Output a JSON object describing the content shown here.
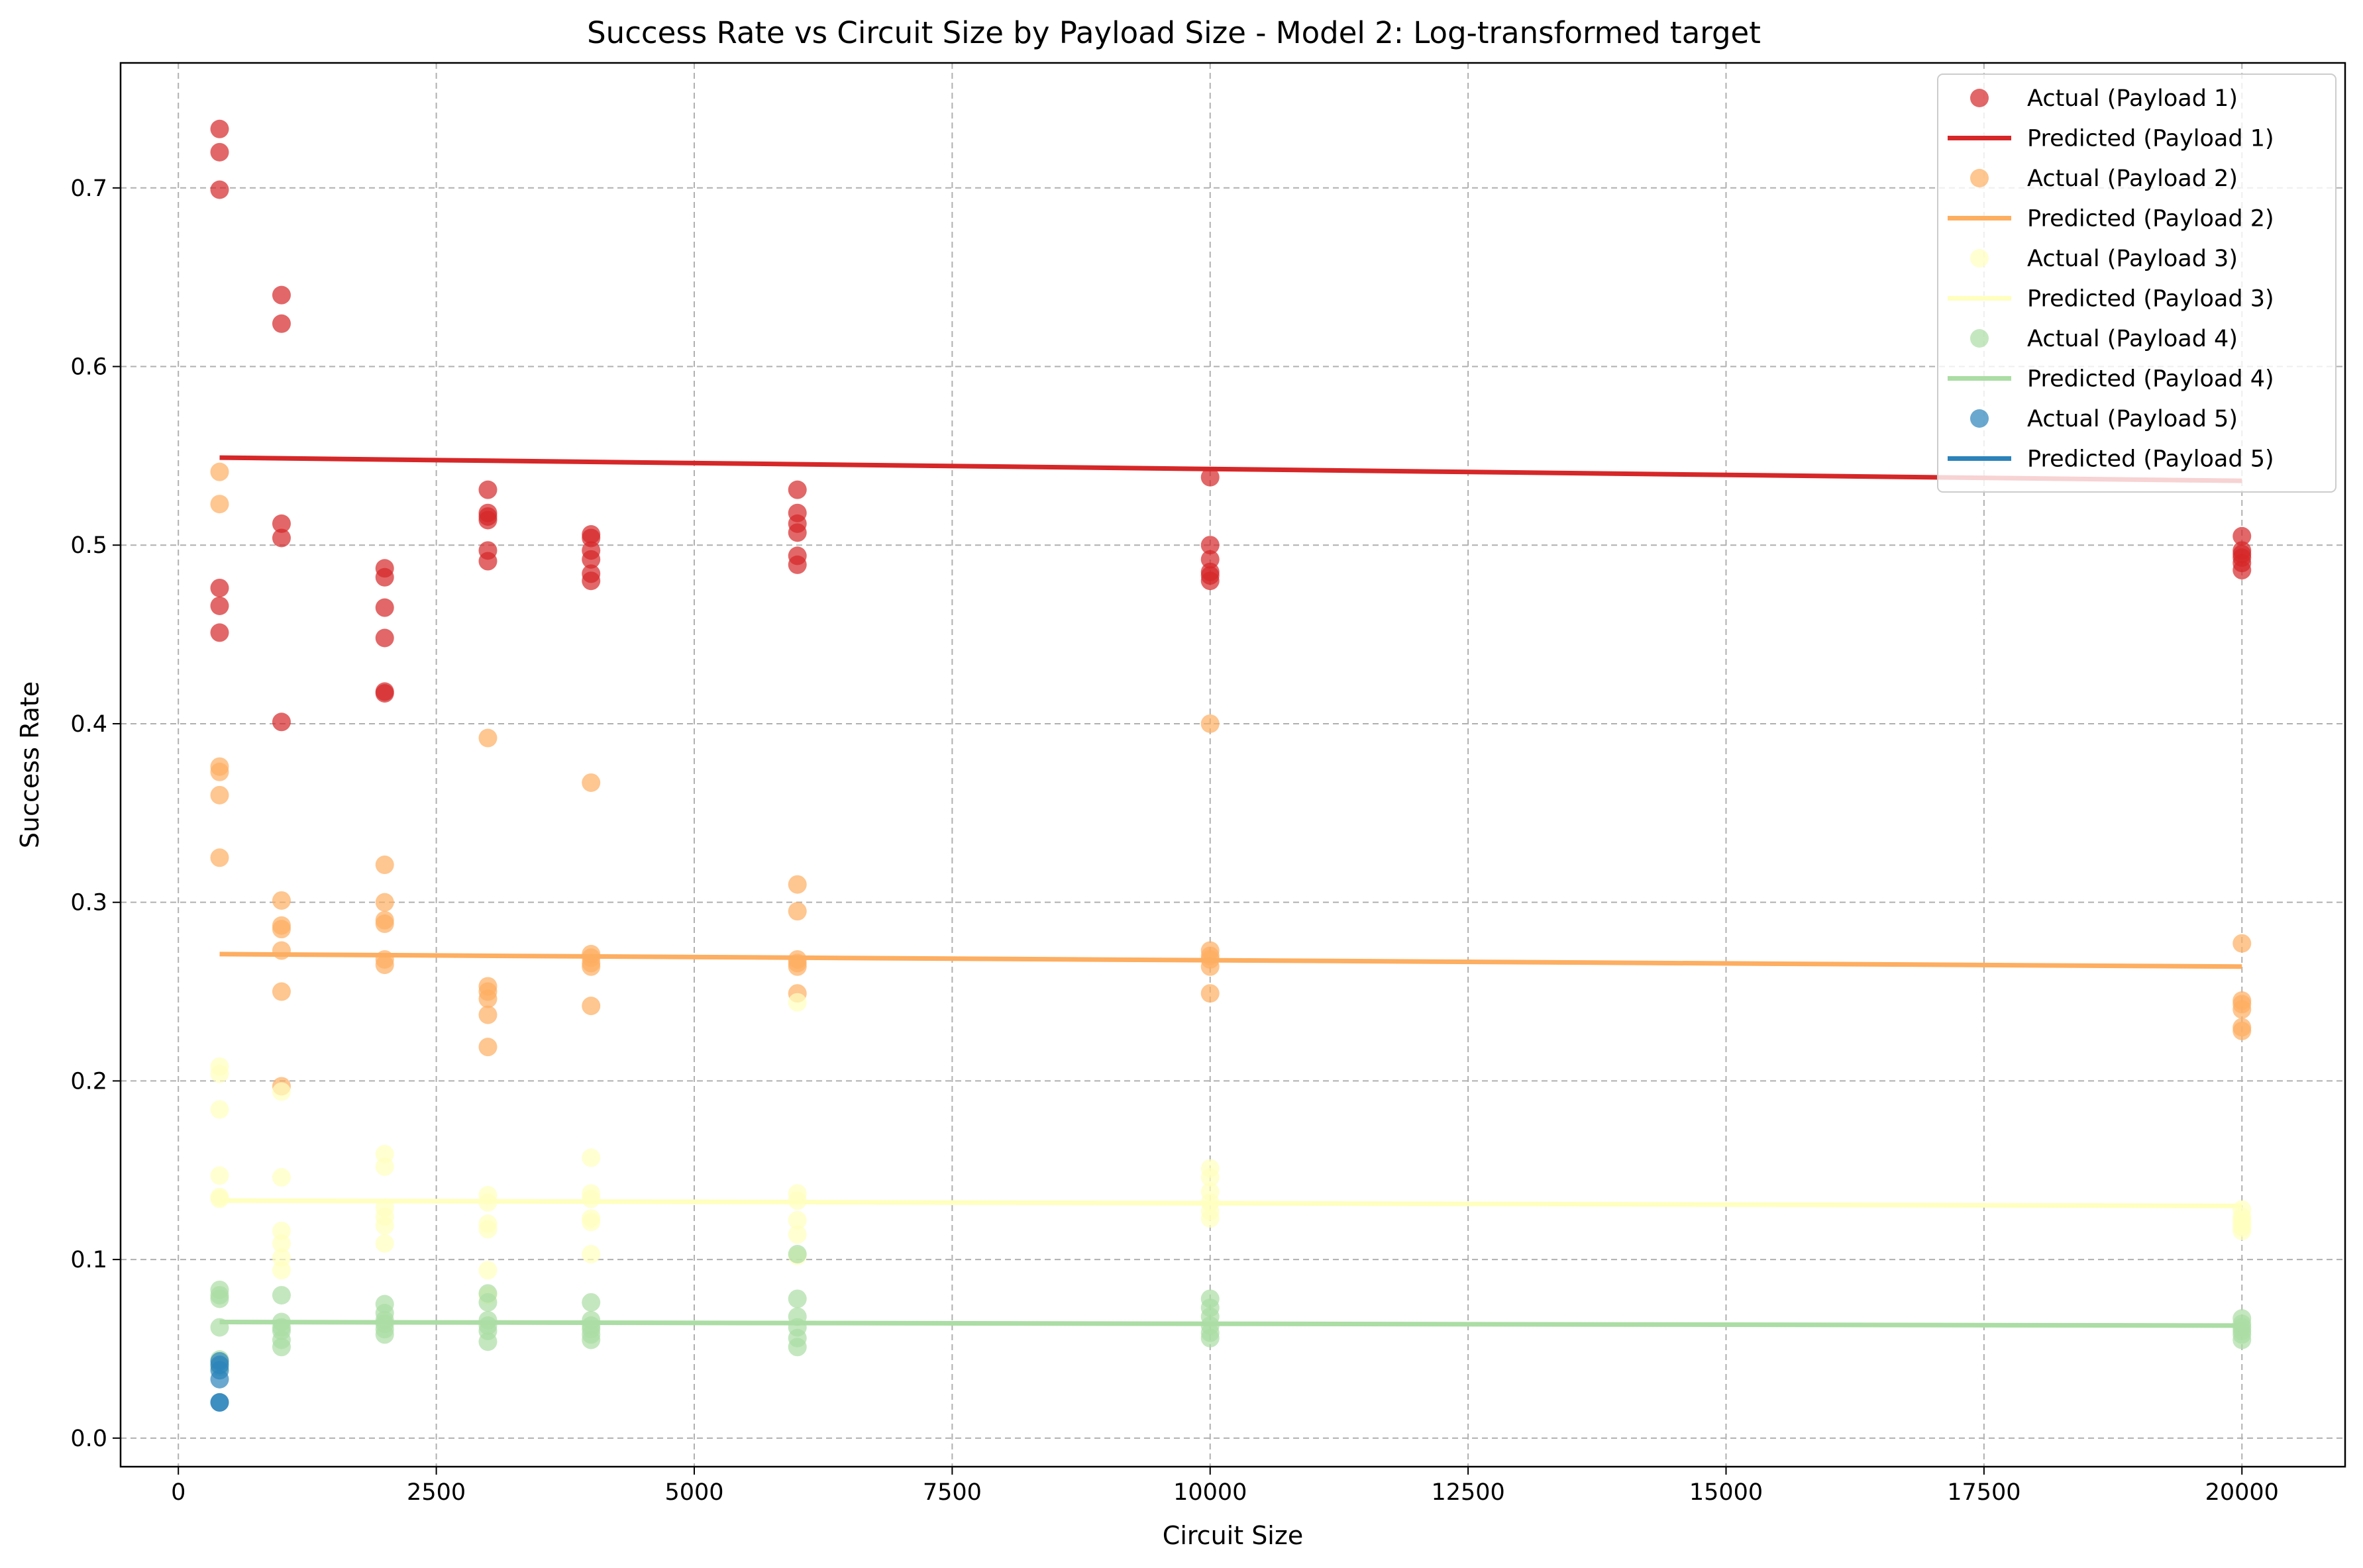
{
  "chart_data": {
    "type": "scatter",
    "title": "Success Rate vs Circuit Size by Payload Size - Model 2: Log-transformed target",
    "xlabel": "Circuit Size",
    "ylabel": "Success Rate",
    "xlim": [
      -560,
      21000
    ],
    "ylim": [
      -0.016,
      0.77
    ],
    "xticks": [
      0,
      2500,
      5000,
      7500,
      10000,
      12500,
      15000,
      17500,
      20000
    ],
    "xtick_labels": [
      "0",
      "2500",
      "5000",
      "7500",
      "10000",
      "12500",
      "15000",
      "17500",
      "20000"
    ],
    "yticks": [
      0.0,
      0.1,
      0.2,
      0.3,
      0.4,
      0.5,
      0.6,
      0.7
    ],
    "ytick_labels": [
      "0.0",
      "0.1",
      "0.2",
      "0.3",
      "0.4",
      "0.5",
      "0.6",
      "0.7"
    ],
    "grid": true,
    "legend_position": "top-right",
    "legend": [
      {
        "label": "Actual (Payload 1)",
        "kind": "marker",
        "color": "#d62728"
      },
      {
        "label": "Predicted (Payload 1)",
        "kind": "line",
        "color": "#d62728"
      },
      {
        "label": "Actual (Payload 2)",
        "kind": "marker",
        "color": "#fdae61"
      },
      {
        "label": "Predicted (Payload 2)",
        "kind": "line",
        "color": "#fdae61"
      },
      {
        "label": "Actual (Payload 3)",
        "kind": "marker",
        "color": "#ffffbf"
      },
      {
        "label": "Predicted (Payload 3)",
        "kind": "line",
        "color": "#ffffbf"
      },
      {
        "label": "Actual (Payload 4)",
        "kind": "marker",
        "color": "#abdda4"
      },
      {
        "label": "Predicted (Payload 4)",
        "kind": "line",
        "color": "#abdda4"
      },
      {
        "label": "Actual (Payload 5)",
        "kind": "marker",
        "color": "#2b83ba"
      },
      {
        "label": "Predicted (Payload 5)",
        "kind": "line",
        "color": "#2b83ba"
      }
    ],
    "series": [
      {
        "color": "#d62728",
        "actual": [
          [
            400,
            0.733
          ],
          [
            400,
            0.72
          ],
          [
            400,
            0.699
          ],
          [
            400,
            0.476
          ],
          [
            400,
            0.466
          ],
          [
            400,
            0.451
          ],
          [
            1000,
            0.64
          ],
          [
            1000,
            0.624
          ],
          [
            1000,
            0.512
          ],
          [
            1000,
            0.504
          ],
          [
            1000,
            0.401
          ],
          [
            2000,
            0.487
          ],
          [
            2000,
            0.482
          ],
          [
            2000,
            0.465
          ],
          [
            2000,
            0.448
          ],
          [
            2000,
            0.418
          ],
          [
            2000,
            0.417
          ],
          [
            3000,
            0.531
          ],
          [
            3000,
            0.518
          ],
          [
            3000,
            0.516
          ],
          [
            3000,
            0.514
          ],
          [
            3000,
            0.497
          ],
          [
            3000,
            0.491
          ],
          [
            4000,
            0.506
          ],
          [
            4000,
            0.504
          ],
          [
            4000,
            0.497
          ],
          [
            4000,
            0.492
          ],
          [
            4000,
            0.484
          ],
          [
            4000,
            0.48
          ],
          [
            6000,
            0.531
          ],
          [
            6000,
            0.518
          ],
          [
            6000,
            0.512
          ],
          [
            6000,
            0.507
          ],
          [
            6000,
            0.494
          ],
          [
            6000,
            0.489
          ],
          [
            10000,
            0.538
          ],
          [
            10000,
            0.5
          ],
          [
            10000,
            0.492
          ],
          [
            10000,
            0.485
          ],
          [
            10000,
            0.483
          ],
          [
            10000,
            0.48
          ],
          [
            20000,
            0.505
          ],
          [
            20000,
            0.497
          ],
          [
            20000,
            0.495
          ],
          [
            20000,
            0.493
          ],
          [
            20000,
            0.49
          ],
          [
            20000,
            0.486
          ]
        ],
        "predicted": [
          [
            400,
            0.549
          ],
          [
            20000,
            0.536
          ]
        ]
      },
      {
        "color": "#fdae61",
        "actual": [
          [
            400,
            0.541
          ],
          [
            400,
            0.523
          ],
          [
            400,
            0.376
          ],
          [
            400,
            0.373
          ],
          [
            400,
            0.36
          ],
          [
            400,
            0.325
          ],
          [
            1000,
            0.301
          ],
          [
            1000,
            0.287
          ],
          [
            1000,
            0.285
          ],
          [
            1000,
            0.273
          ],
          [
            1000,
            0.25
          ],
          [
            1000,
            0.197
          ],
          [
            2000,
            0.321
          ],
          [
            2000,
            0.3
          ],
          [
            2000,
            0.29
          ],
          [
            2000,
            0.288
          ],
          [
            2000,
            0.268
          ],
          [
            2000,
            0.265
          ],
          [
            3000,
            0.392
          ],
          [
            3000,
            0.253
          ],
          [
            3000,
            0.25
          ],
          [
            3000,
            0.246
          ],
          [
            3000,
            0.237
          ],
          [
            3000,
            0.219
          ],
          [
            4000,
            0.367
          ],
          [
            4000,
            0.271
          ],
          [
            4000,
            0.269
          ],
          [
            4000,
            0.266
          ],
          [
            4000,
            0.264
          ],
          [
            4000,
            0.242
          ],
          [
            6000,
            0.31
          ],
          [
            6000,
            0.295
          ],
          [
            6000,
            0.268
          ],
          [
            6000,
            0.266
          ],
          [
            6000,
            0.264
          ],
          [
            6000,
            0.249
          ],
          [
            10000,
            0.4
          ],
          [
            10000,
            0.273
          ],
          [
            10000,
            0.27
          ],
          [
            10000,
            0.268
          ],
          [
            10000,
            0.264
          ],
          [
            10000,
            0.249
          ],
          [
            20000,
            0.277
          ],
          [
            20000,
            0.245
          ],
          [
            20000,
            0.243
          ],
          [
            20000,
            0.24
          ],
          [
            20000,
            0.23
          ],
          [
            20000,
            0.228
          ]
        ],
        "predicted": [
          [
            400,
            0.271
          ],
          [
            20000,
            0.264
          ]
        ]
      },
      {
        "color": "#ffffbf",
        "actual": [
          [
            400,
            0.208
          ],
          [
            400,
            0.204
          ],
          [
            400,
            0.184
          ],
          [
            400,
            0.147
          ],
          [
            400,
            0.135
          ],
          [
            400,
            0.134
          ],
          [
            1000,
            0.194
          ],
          [
            1000,
            0.146
          ],
          [
            1000,
            0.116
          ],
          [
            1000,
            0.109
          ],
          [
            1000,
            0.101
          ],
          [
            1000,
            0.094
          ],
          [
            2000,
            0.159
          ],
          [
            2000,
            0.152
          ],
          [
            2000,
            0.129
          ],
          [
            2000,
            0.124
          ],
          [
            2000,
            0.119
          ],
          [
            2000,
            0.109
          ],
          [
            3000,
            0.136
          ],
          [
            3000,
            0.132
          ],
          [
            3000,
            0.12
          ],
          [
            3000,
            0.117
          ],
          [
            3000,
            0.094
          ],
          [
            3000,
            0.08
          ],
          [
            4000,
            0.157
          ],
          [
            4000,
            0.137
          ],
          [
            4000,
            0.134
          ],
          [
            4000,
            0.123
          ],
          [
            4000,
            0.121
          ],
          [
            4000,
            0.103
          ],
          [
            6000,
            0.244
          ],
          [
            6000,
            0.137
          ],
          [
            6000,
            0.133
          ],
          [
            6000,
            0.122
          ],
          [
            6000,
            0.114
          ],
          [
            6000,
            0.102
          ],
          [
            10000,
            0.151
          ],
          [
            10000,
            0.146
          ],
          [
            10000,
            0.138
          ],
          [
            10000,
            0.132
          ],
          [
            10000,
            0.127
          ],
          [
            10000,
            0.123
          ],
          [
            20000,
            0.128
          ],
          [
            20000,
            0.124
          ],
          [
            20000,
            0.122
          ],
          [
            20000,
            0.12
          ],
          [
            20000,
            0.118
          ],
          [
            20000,
            0.116
          ]
        ],
        "predicted": [
          [
            400,
            0.133
          ],
          [
            20000,
            0.13
          ]
        ]
      },
      {
        "color": "#abdda4",
        "actual": [
          [
            400,
            0.083
          ],
          [
            400,
            0.08
          ],
          [
            400,
            0.078
          ],
          [
            400,
            0.062
          ],
          [
            400,
            0.044
          ],
          [
            400,
            0.04
          ],
          [
            1000,
            0.08
          ],
          [
            1000,
            0.065
          ],
          [
            1000,
            0.062
          ],
          [
            1000,
            0.06
          ],
          [
            1000,
            0.055
          ],
          [
            1000,
            0.051
          ],
          [
            2000,
            0.075
          ],
          [
            2000,
            0.07
          ],
          [
            2000,
            0.066
          ],
          [
            2000,
            0.064
          ],
          [
            2000,
            0.061
          ],
          [
            2000,
            0.058
          ],
          [
            3000,
            0.081
          ],
          [
            3000,
            0.076
          ],
          [
            3000,
            0.066
          ],
          [
            3000,
            0.063
          ],
          [
            3000,
            0.06
          ],
          [
            3000,
            0.054
          ],
          [
            4000,
            0.076
          ],
          [
            4000,
            0.066
          ],
          [
            4000,
            0.063
          ],
          [
            4000,
            0.061
          ],
          [
            4000,
            0.058
          ],
          [
            4000,
            0.055
          ],
          [
            6000,
            0.103
          ],
          [
            6000,
            0.078
          ],
          [
            6000,
            0.068
          ],
          [
            6000,
            0.062
          ],
          [
            6000,
            0.056
          ],
          [
            6000,
            0.051
          ],
          [
            10000,
            0.078
          ],
          [
            10000,
            0.073
          ],
          [
            10000,
            0.068
          ],
          [
            10000,
            0.063
          ],
          [
            10000,
            0.059
          ],
          [
            10000,
            0.056
          ],
          [
            20000,
            0.067
          ],
          [
            20000,
            0.064
          ],
          [
            20000,
            0.062
          ],
          [
            20000,
            0.06
          ],
          [
            20000,
            0.058
          ],
          [
            20000,
            0.055
          ]
        ],
        "predicted": [
          [
            400,
            0.065
          ],
          [
            20000,
            0.063
          ]
        ]
      },
      {
        "color": "#2b83ba",
        "actual": [
          [
            400,
            0.043
          ],
          [
            400,
            0.041
          ],
          [
            400,
            0.038
          ],
          [
            400,
            0.033
          ],
          [
            400,
            0.02
          ],
          [
            400,
            0.02
          ]
        ],
        "predicted": [
          [
            400,
            0.0
          ],
          [
            400,
            0.0
          ]
        ]
      }
    ]
  }
}
